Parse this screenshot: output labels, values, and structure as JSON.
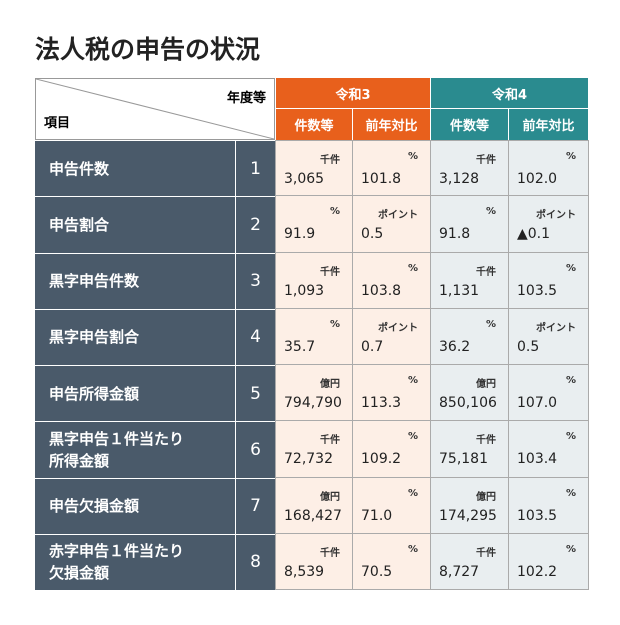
{
  "title": "法人税の申告の状況",
  "header": {
    "corner_top": "年度等",
    "corner_bottom": "項目",
    "years": [
      {
        "name": "令和3",
        "columns": [
          "件数等",
          "前年対比"
        ]
      },
      {
        "name": "令和4",
        "columns": [
          "件数等",
          "前年対比"
        ]
      }
    ]
  },
  "rows": [
    {
      "label": [
        "申告件数"
      ],
      "number": "1",
      "cells": [
        {
          "unit": "千件",
          "value": "3,065"
        },
        {
          "unit": "%",
          "value": "101.8"
        },
        {
          "unit": "千件",
          "value": "3,128"
        },
        {
          "unit": "%",
          "value": "102.0"
        }
      ]
    },
    {
      "label": [
        "申告割合"
      ],
      "number": "2",
      "cells": [
        {
          "unit": "%",
          "value": "91.9"
        },
        {
          "unit": "ポイント",
          "value": "0.5"
        },
        {
          "unit": "%",
          "value": "91.8"
        },
        {
          "unit": "ポイント",
          "value": "▲0.1"
        }
      ]
    },
    {
      "label": [
        "黒字申告件数"
      ],
      "number": "3",
      "cells": [
        {
          "unit": "千件",
          "value": "1,093"
        },
        {
          "unit": "%",
          "value": "103.8"
        },
        {
          "unit": "千件",
          "value": "1,131"
        },
        {
          "unit": "%",
          "value": "103.5"
        }
      ]
    },
    {
      "label": [
        "黒字申告割合"
      ],
      "number": "4",
      "cells": [
        {
          "unit": "%",
          "value": "35.7"
        },
        {
          "unit": "ポイント",
          "value": "0.7"
        },
        {
          "unit": "%",
          "value": "36.2"
        },
        {
          "unit": "ポイント",
          "value": "0.5"
        }
      ]
    },
    {
      "label": [
        "申告所得金額"
      ],
      "number": "5",
      "cells": [
        {
          "unit": "億円",
          "value": "794,790"
        },
        {
          "unit": "%",
          "value": "113.3"
        },
        {
          "unit": "億円",
          "value": "850,106"
        },
        {
          "unit": "%",
          "value": "107.0"
        }
      ]
    },
    {
      "label": [
        "黒字申告１件当たり",
        "所得金額"
      ],
      "number": "6",
      "cells": [
        {
          "unit": "千件",
          "value": "72,732"
        },
        {
          "unit": "%",
          "value": "109.2"
        },
        {
          "unit": "千件",
          "value": "75,181"
        },
        {
          "unit": "%",
          "value": "103.4"
        }
      ]
    },
    {
      "label": [
        "申告欠損金額"
      ],
      "number": "7",
      "cells": [
        {
          "unit": "億円",
          "value": "168,427"
        },
        {
          "unit": "%",
          "value": "71.0"
        },
        {
          "unit": "億円",
          "value": "174,295"
        },
        {
          "unit": "%",
          "value": "103.5"
        }
      ]
    },
    {
      "label": [
        "赤字申告１件当たり",
        "欠損金額"
      ],
      "number": "8",
      "cells": [
        {
          "unit": "千件",
          "value": "8,539"
        },
        {
          "unit": "%",
          "value": "70.5"
        },
        {
          "unit": "千件",
          "value": "8,727"
        },
        {
          "unit": "%",
          "value": "102.2"
        }
      ]
    }
  ]
}
